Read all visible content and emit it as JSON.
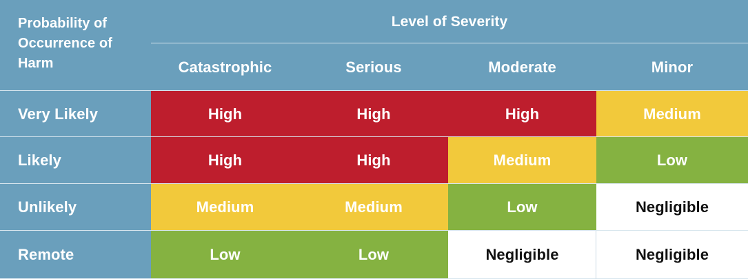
{
  "corner_label": "Probability of\nOccurrence of\nHarm",
  "severity_title": "Level of Severity",
  "columns": [
    "Catastrophic",
    "Serious",
    "Moderate",
    "Minor"
  ],
  "rows": [
    {
      "label": "Very Likely",
      "cells": [
        "High",
        "High",
        "High",
        "Medium"
      ]
    },
    {
      "label": "Likely",
      "cells": [
        "High",
        "High",
        "Medium",
        "Low"
      ]
    },
    {
      "label": "Unlikely",
      "cells": [
        "Medium",
        "Medium",
        "Low",
        "Negligible"
      ]
    },
    {
      "label": "Remote",
      "cells": [
        "Low",
        "Low",
        "Negligible",
        "Negligible"
      ]
    }
  ],
  "colors": {
    "header_blue": "#6a9fbc",
    "high": "#be1e2d",
    "medium": "#f2c93b",
    "low": "#85b241",
    "negligible": "#ffffff"
  }
}
